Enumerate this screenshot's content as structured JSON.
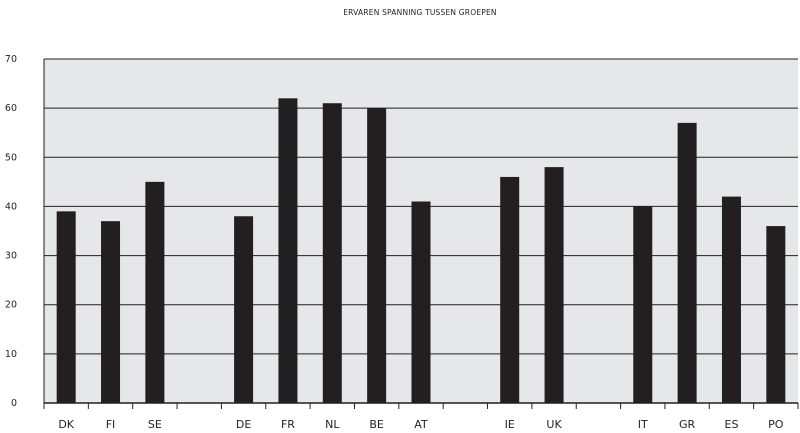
{
  "chart_data": {
    "type": "bar",
    "title": "ERVAREN SPANNING TUSSEN GROEPEN",
    "xlabel": "",
    "ylabel": "",
    "ylim": [
      0,
      70
    ],
    "yticks": [
      "0",
      "10",
      "20",
      "30",
      "40",
      "50",
      "60",
      "70"
    ],
    "grid": true,
    "categories": [
      "DK",
      "FI",
      "SE",
      "",
      "DE",
      "FR",
      "NL",
      "BE",
      "AT",
      "",
      "IE",
      "UK",
      "",
      "IT",
      "GR",
      "ES",
      "PO"
    ],
    "values": [
      39,
      37,
      45,
      null,
      38,
      62,
      61,
      60,
      41,
      null,
      46,
      48,
      null,
      40,
      57,
      42,
      36
    ],
    "colors": {
      "bar": "#231f20",
      "plot_bg": "#e6e7e8",
      "grid": "#231f20"
    }
  }
}
